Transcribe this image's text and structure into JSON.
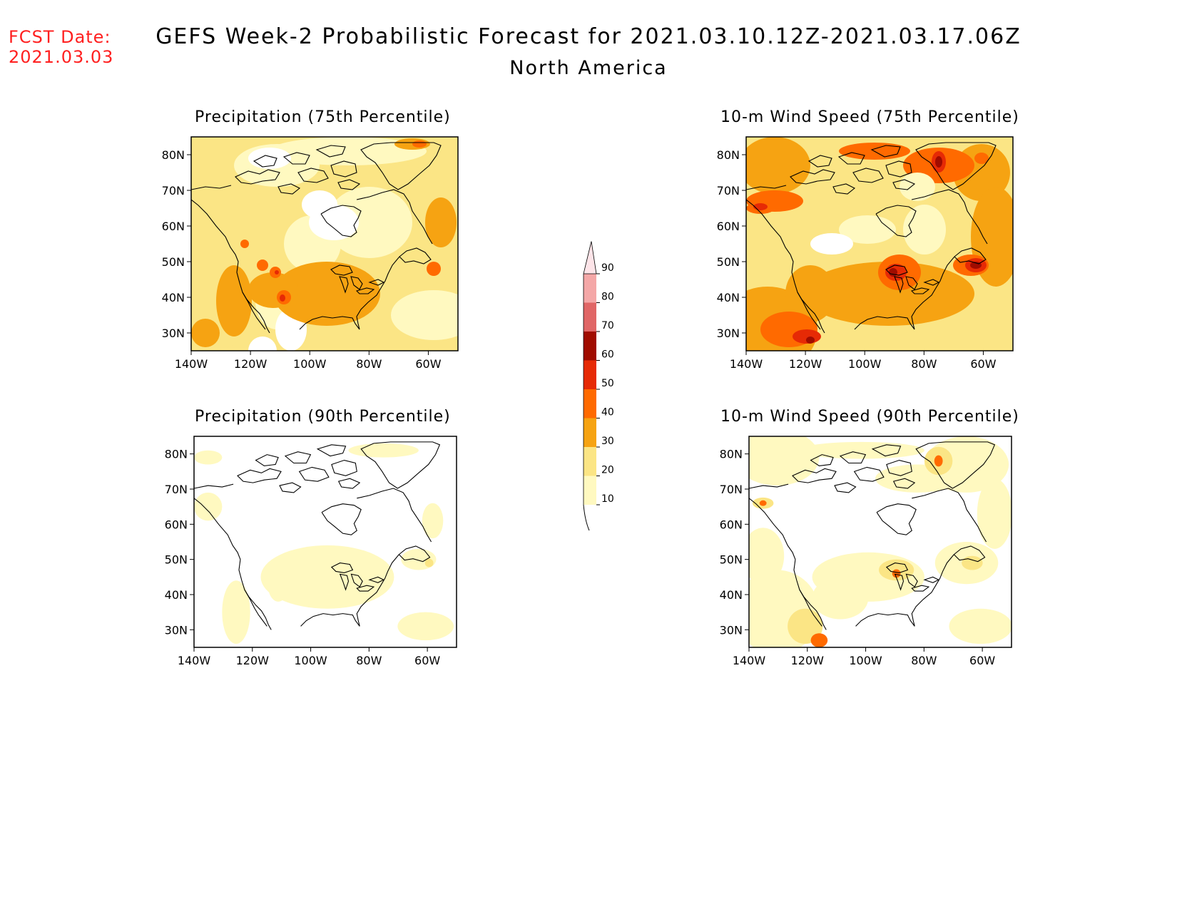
{
  "forecast_date": {
    "label": "FCST Date:",
    "value": "2021.03.03"
  },
  "title": "GEFS Week-2 Probabilistic Forecast for 2021.03.10.12Z-2021.03.17.06Z",
  "region": "North America",
  "panels": [
    {
      "title": "Precipitation (75th Percentile)"
    },
    {
      "title": "10-m Wind Speed (75th Percentile)"
    },
    {
      "title": "Precipitation (90th Percentile)"
    },
    {
      "title": "10-m Wind Speed (90th Percentile)"
    }
  ],
  "axes": {
    "lat_labels": [
      "80N",
      "70N",
      "60N",
      "50N",
      "40N",
      "30N"
    ],
    "lat_values": [
      80,
      70,
      60,
      50,
      40,
      30
    ],
    "lon_labels": [
      "140W",
      "120W",
      "100W",
      "80W",
      "60W"
    ],
    "lon_values": [
      -140,
      -120,
      -100,
      -80,
      -60
    ],
    "lat_range": [
      25,
      85
    ],
    "lon_range": [
      -140,
      -50
    ]
  },
  "colorbar": {
    "labels": [
      "10",
      "20",
      "30",
      "40",
      "50",
      "60",
      "70",
      "80",
      "90"
    ],
    "levels": [
      10,
      20,
      30,
      40,
      50,
      60,
      70,
      80,
      90
    ],
    "colors": [
      "#fff9c0",
      "#fbe585",
      "#f6a312",
      "#ff6a00",
      "#e62a05",
      "#a00c00",
      "#e06666",
      "#f4a7a7",
      "#fde4e8"
    ]
  },
  "colors": {
    "fcst_text": "#ff2020",
    "p10": "#fff9c0",
    "p20": "#fbe585",
    "p30": "#f6a312",
    "p40": "#ff6a00",
    "p50": "#e62a05",
    "p60": "#a00c00",
    "p70": "#e06666"
  }
}
